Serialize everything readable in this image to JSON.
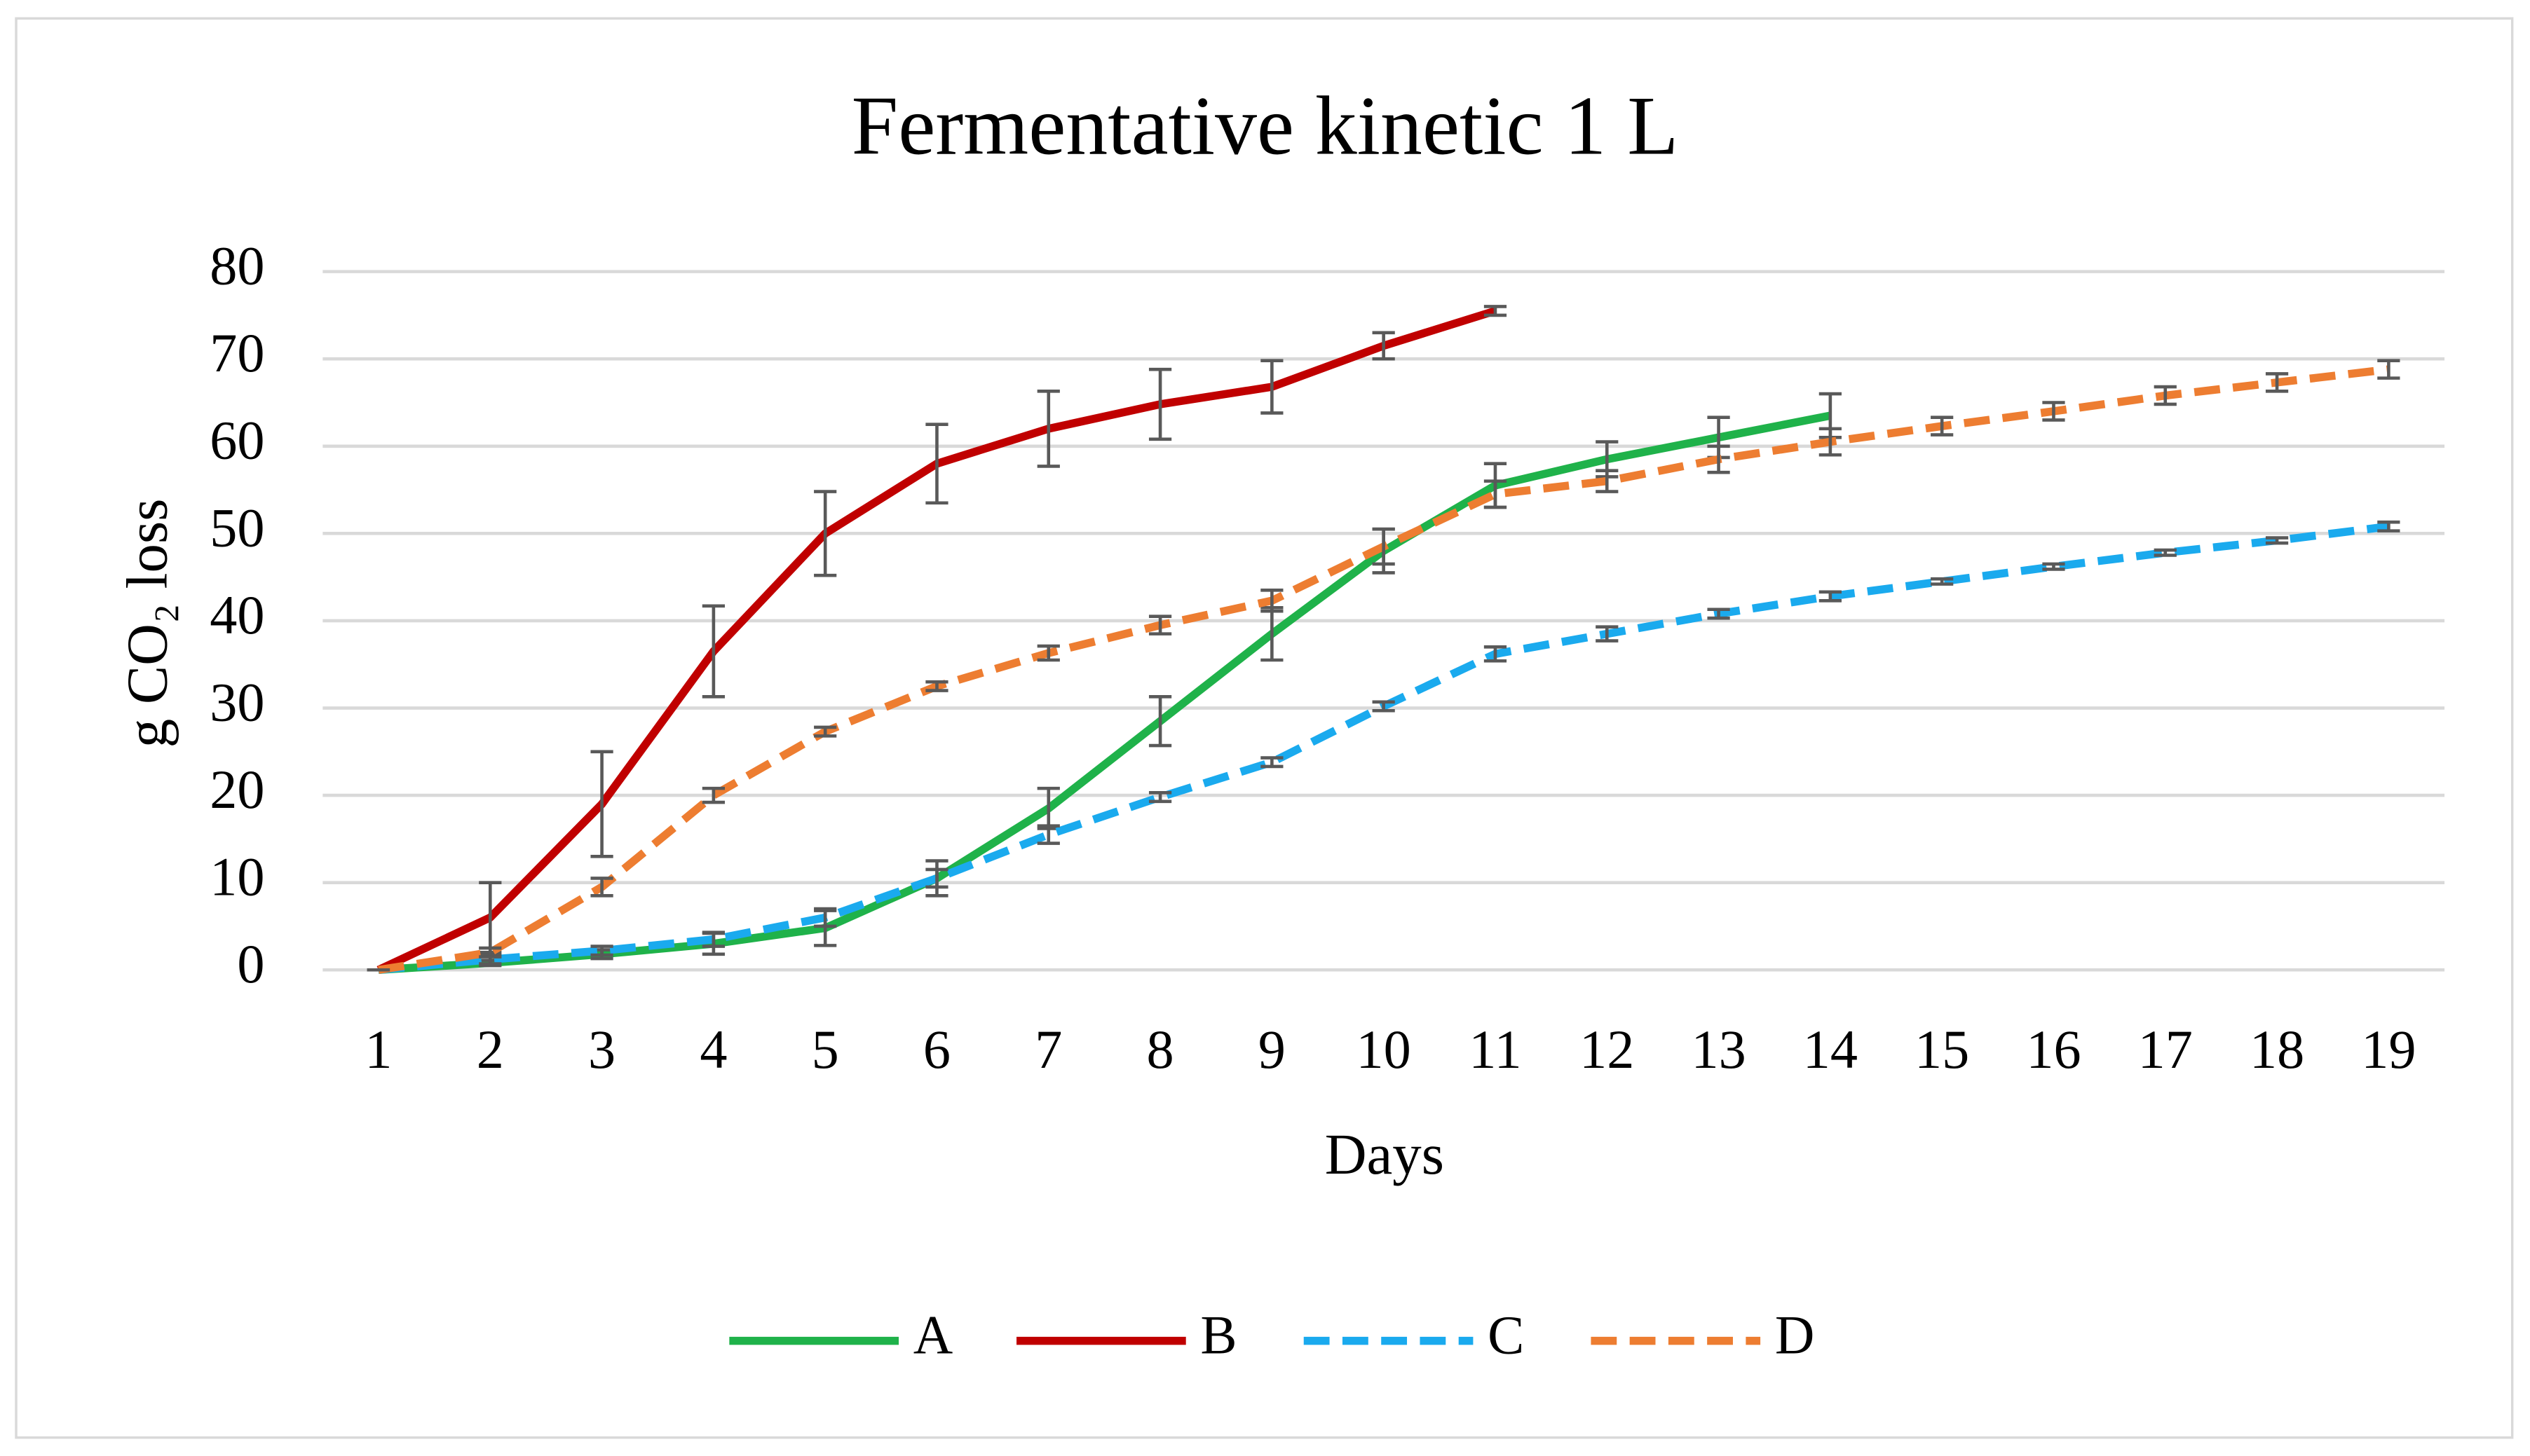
{
  "chart_data": {
    "type": "line",
    "title": "Fermentative kinetic 1 L",
    "x_label": "Days",
    "y_label": "g CO₂ loss",
    "categories": [
      "1",
      "2",
      "3",
      "4",
      "5",
      "6",
      "7",
      "8",
      "9",
      "10",
      "11",
      "12",
      "13",
      "14",
      "15",
      "16",
      "17",
      "18",
      "19"
    ],
    "ylim": [
      0,
      80
    ],
    "yticks": [
      0,
      10,
      20,
      30,
      40,
      50,
      60,
      70,
      80
    ],
    "grid": true,
    "legend": "bottom",
    "series": [
      {
        "name": "A",
        "color": "#1fb24a",
        "dashed": false,
        "values": [
          0,
          0.8,
          1.8,
          3,
          4.8,
          10.5,
          18.5,
          28.5,
          38.5,
          48,
          55.5,
          58.5,
          61,
          63.5,
          null,
          null,
          null,
          null,
          null
        ],
        "errors": [
          0,
          0.3,
          0.5,
          1.2,
          2,
          2,
          2.3,
          2.8,
          3,
          2.5,
          2.5,
          2,
          2.3,
          2.5,
          null,
          null,
          null,
          null,
          null
        ]
      },
      {
        "name": "B",
        "color": "#c00000",
        "dashed": false,
        "values": [
          0,
          6,
          19,
          36.5,
          50,
          58,
          62,
          64.8,
          66.8,
          71.5,
          75.5,
          null,
          null,
          null,
          null,
          null,
          null,
          null,
          null
        ],
        "errors": [
          0,
          4,
          6,
          5.2,
          4.8,
          4.5,
          4.3,
          4,
          3,
          1.5,
          0.5,
          null,
          null,
          null,
          null,
          null,
          null,
          null,
          null
        ]
      },
      {
        "name": "C",
        "color": "#1aaaee",
        "dashed": true,
        "values": [
          0,
          1.2,
          2.2,
          3.5,
          6,
          10.5,
          15.5,
          19.8,
          23.8,
          30.2,
          36.2,
          38.5,
          40.8,
          42.8,
          44.5,
          46.2,
          47.8,
          49.2,
          50.8
        ],
        "errors": [
          0,
          0.5,
          0.5,
          0.8,
          1,
          1,
          1,
          0.5,
          0.5,
          0.5,
          0.8,
          0.8,
          0.5,
          0.5,
          0.3,
          0.3,
          0.3,
          0.3,
          0.5
        ]
      },
      {
        "name": "D",
        "color": "#ed7d31",
        "dashed": true,
        "values": [
          0,
          2,
          9.5,
          20,
          27.3,
          32.5,
          36.3,
          39.5,
          42.3,
          48.5,
          54.5,
          56,
          58.5,
          60.5,
          62.3,
          64,
          65.8,
          67.3,
          68.8
        ],
        "errors": [
          0,
          0.5,
          1,
          0.8,
          0.5,
          0.5,
          0.8,
          1,
          1.2,
          2,
          1.5,
          1.2,
          1.5,
          1.5,
          1,
          1,
          1,
          1,
          1
        ]
      }
    ]
  }
}
